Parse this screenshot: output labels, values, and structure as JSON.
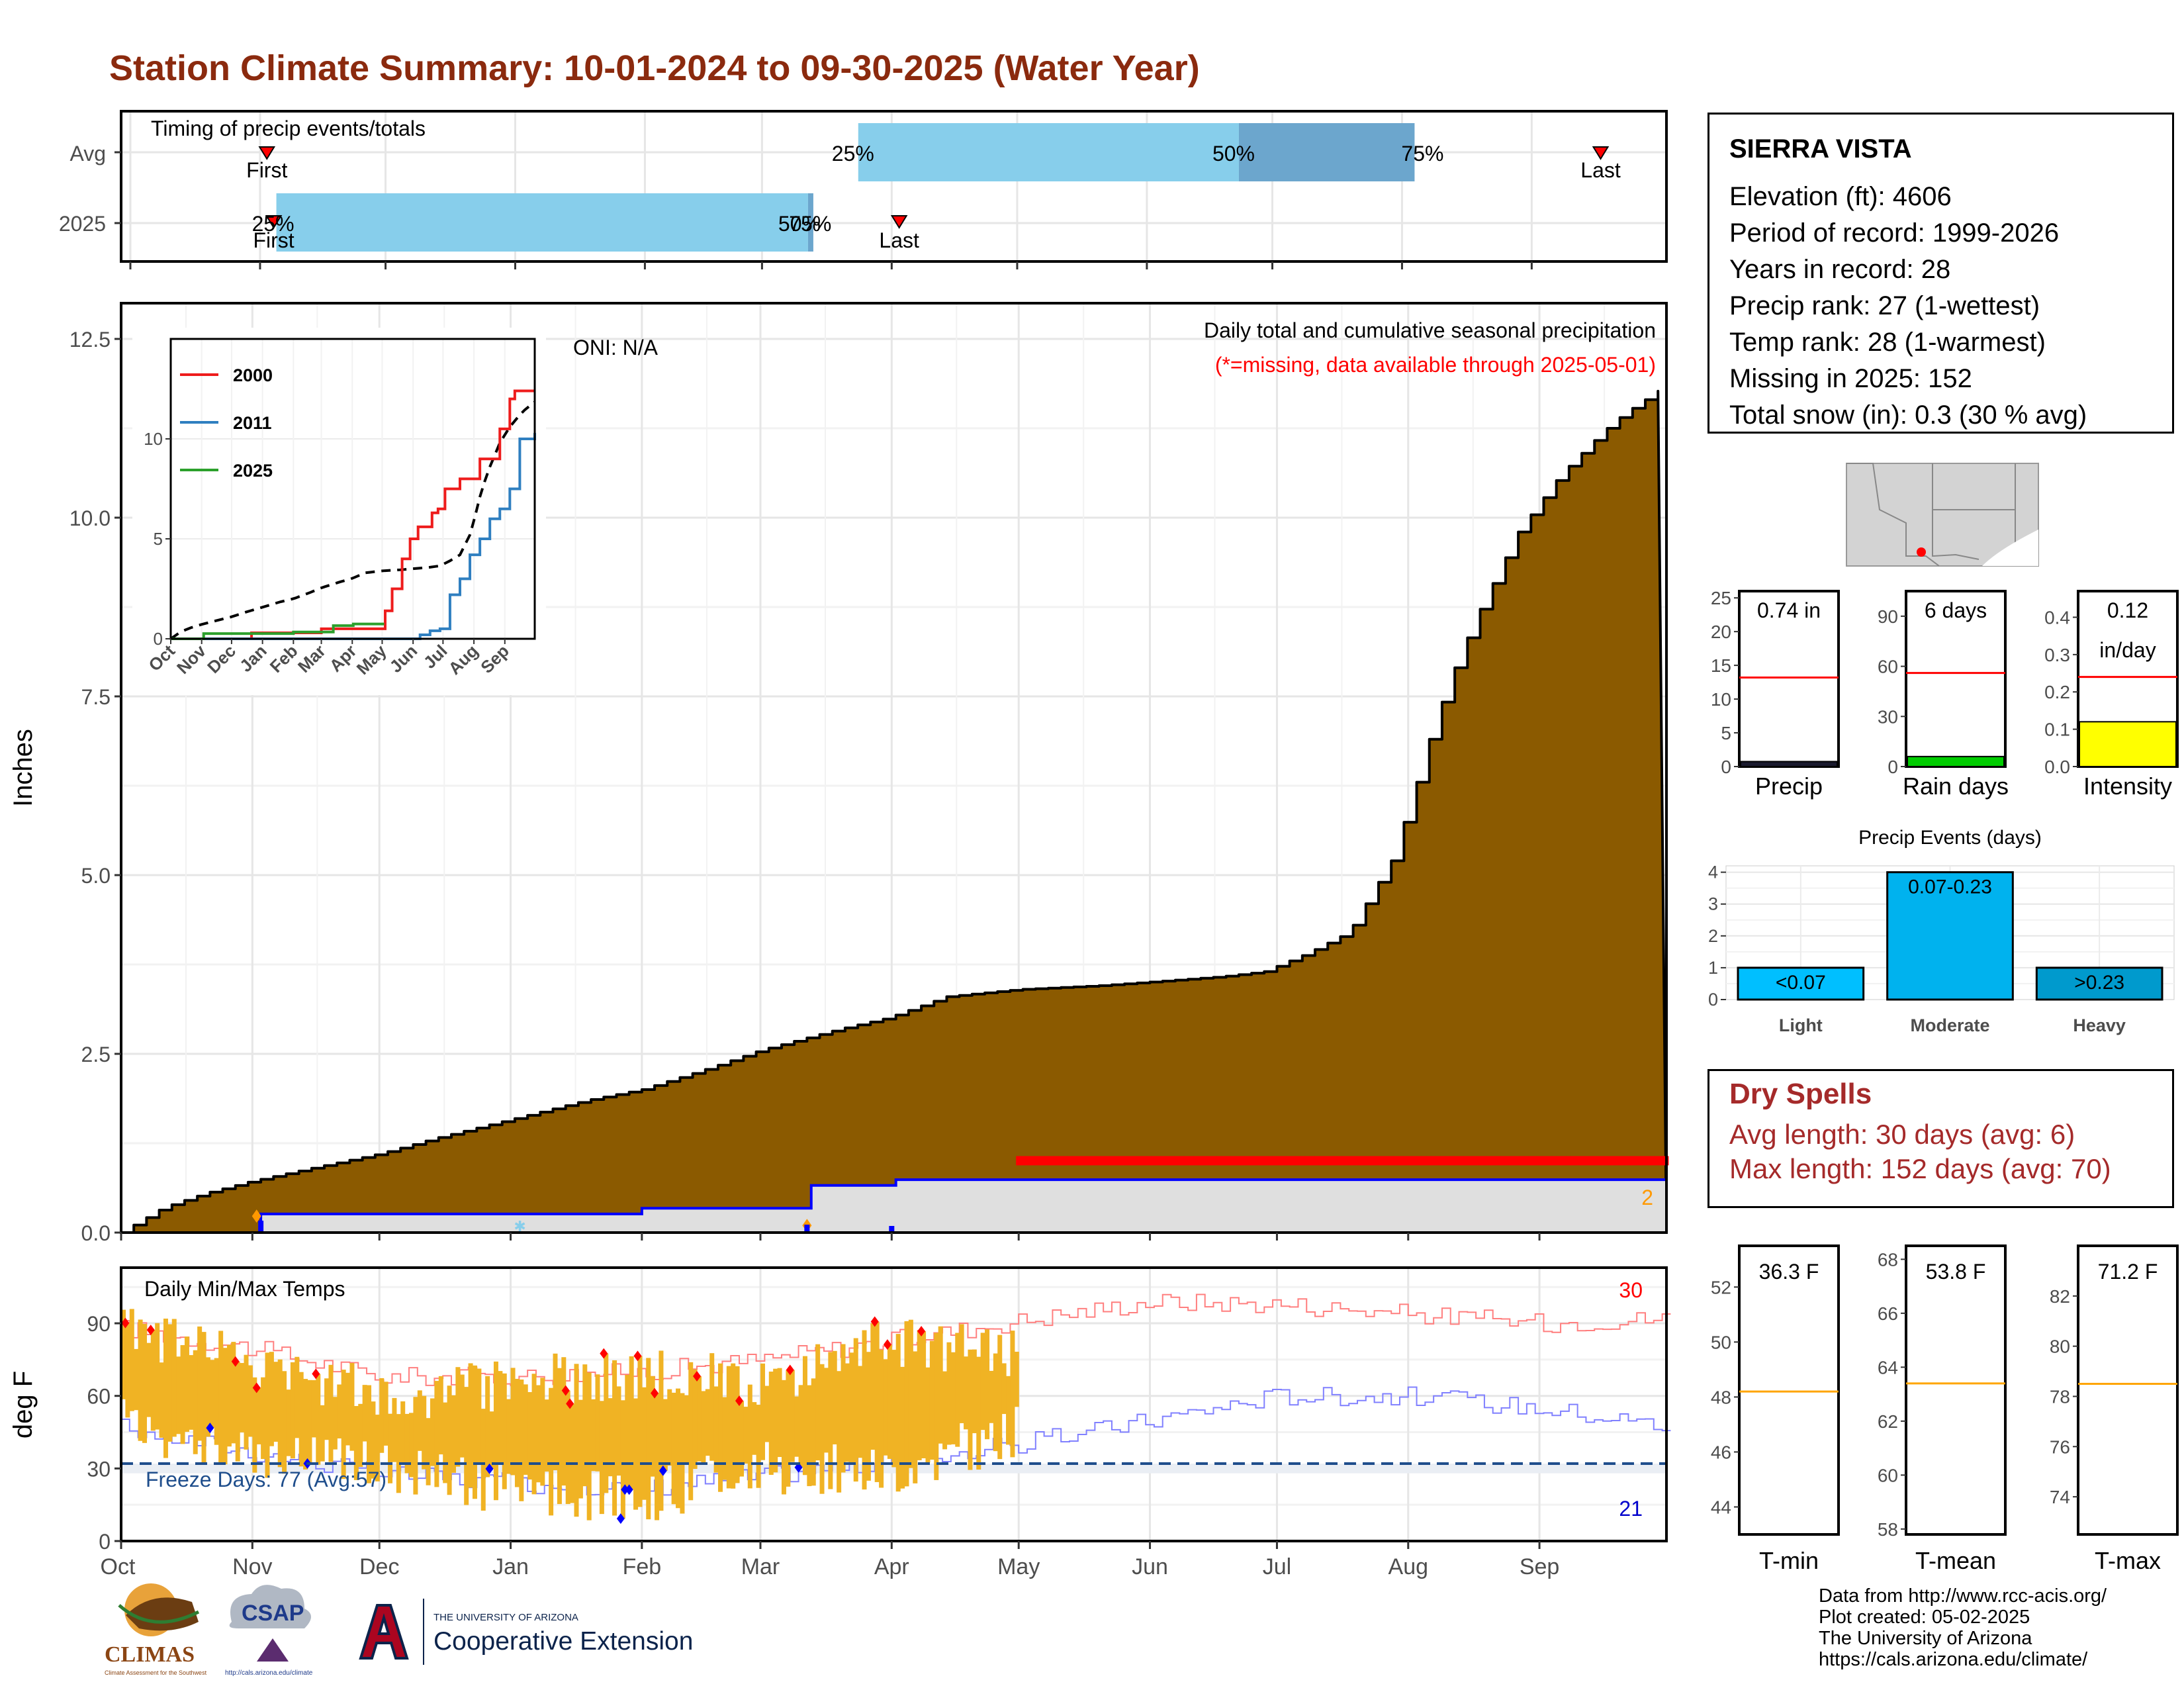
{
  "title": "Station Climate Summary: 10-01-2024 to 09-30-2025 (Water Year)",
  "colors": {
    "title": "#8b2a0e",
    "precip_fill": "#8b5a00",
    "avg_band": "#87ceeb",
    "avg_band_dark": "#6ca6cd",
    "missing": "#ff0000",
    "tmax_line": "#ff7f7f",
    "tmin_line": "#8080ff",
    "temp_bar": "#f0b324",
    "rain_days": "#00cc00",
    "intensity": "#ffff00",
    "events_light": "#00bfff",
    "events_moderate": "#00b2ee",
    "events_heavy": "#009acd",
    "dry_spell_text": "#a52a2a"
  },
  "months": [
    "Oct",
    "Nov",
    "Dec",
    "Jan",
    "Feb",
    "Mar",
    "Apr",
    "May",
    "Jun",
    "Jul",
    "Aug",
    "Sep"
  ],
  "timing": {
    "label": "Timing of precip events/totals",
    "rows": [
      "Avg",
      "2025"
    ],
    "first_label": "First",
    "last_label": "Last",
    "avg_pct_labels": [
      "25%",
      "50%",
      "75%"
    ],
    "y2025_pct_labels": [
      "25%",
      "50%",
      "75%"
    ],
    "avg": {
      "first_day": 32,
      "p25": 174,
      "p50": 265,
      "p75": 307,
      "last_day": 351
    },
    "y2025": {
      "first_day": 33,
      "p25": 33,
      "p50": 162,
      "p75": 163,
      "last_day": 183
    }
  },
  "precip_panel": {
    "title": "Daily total and cumulative seasonal precipitation",
    "subtitle": "(*=missing, data available through 2025-05-01)",
    "oni": "ONI: N/A",
    "ylabel": "Inches",
    "yticks": [
      "0.0",
      "2.5",
      "5.0",
      "7.5",
      "10.0",
      "12.5"
    ],
    "ylim": [
      0,
      13
    ],
    "count_label": "2"
  },
  "inset": {
    "yticks": [
      "0",
      "5",
      "10"
    ],
    "xticks": [
      "Oct",
      "Nov",
      "Dec",
      "Jan",
      "Feb",
      "Mar",
      "Apr",
      "May",
      "Jun",
      "Jul",
      "Aug",
      "Sep"
    ],
    "legend": [
      "2000",
      "2011",
      "2025"
    ]
  },
  "temp_panel": {
    "label": "Daily Min/Max Temps",
    "ylabel": "deg F",
    "yticks": [
      "0",
      "30",
      "60",
      "90"
    ],
    "ylim": [
      0,
      113
    ],
    "freeze_label": "Freeze Days: 77 (Avg:57)",
    "max_count": "30",
    "min_count": "21"
  },
  "station": {
    "name": "SIERRA VISTA",
    "lines": [
      "Elevation (ft): 4606",
      "Period of record: 1999-2026",
      "Years in record: 28",
      "Precip rank: 27 (1-wettest)",
      "Temp rank: 28 (1-warmest)",
      "Missing in 2025: 152",
      "Total snow (in): 0.3 (30 % avg)"
    ]
  },
  "gauges": [
    {
      "name": "Precip",
      "value_label": "0.74 in",
      "value": 0.74,
      "avg": 13.2,
      "ymax": 26,
      "yticks": [
        "0",
        "5",
        "10",
        "15",
        "20",
        "25"
      ],
      "tickvals": [
        0,
        5,
        10,
        15,
        20,
        25
      ],
      "color": "#1a1a2e"
    },
    {
      "name": "Rain days",
      "value_label": "6 days",
      "value": 6,
      "avg": 56,
      "ymax": 105,
      "yticks": [
        "0",
        "30",
        "60",
        "90"
      ],
      "tickvals": [
        0,
        30,
        60,
        90
      ],
      "color": "#00cc00"
    },
    {
      "name": "Intensity",
      "value_label": "0.12",
      "value_label2": "in/day",
      "value": 0.12,
      "avg": 0.24,
      "ymax": 0.47,
      "yticks": [
        "0.0",
        "0.1",
        "0.2",
        "0.3",
        "0.4"
      ],
      "tickvals": [
        0,
        0.1,
        0.2,
        0.3,
        0.4
      ],
      "color": "#ffff00"
    }
  ],
  "events": {
    "title": "Precip Events (days)",
    "categories": [
      "Light",
      "Moderate",
      "Heavy"
    ],
    "labels": [
      "<0.07",
      "0.07-0.23",
      ">0.23"
    ],
    "values": [
      1,
      4,
      1
    ],
    "yticks": [
      "0",
      "1",
      "2",
      "3",
      "4"
    ]
  },
  "dry_spells": {
    "title": "Dry Spells",
    "avg": "Avg length: 30 days (avg: 6)",
    "max": "Max length: 152 days (avg: 70)"
  },
  "temp_gauges": [
    {
      "name": "T-min",
      "value_label": "36.3 F",
      "ymin": 43,
      "ymax": 53.5,
      "avg": 48.2,
      "yticks": [
        "44",
        "46",
        "48",
        "50",
        "52"
      ],
      "tickvals": [
        44,
        46,
        48,
        50,
        52
      ]
    },
    {
      "name": "T-mean",
      "value_label": "53.8 F",
      "ymin": 57.8,
      "ymax": 68.5,
      "avg": 63.4,
      "yticks": [
        "58",
        "60",
        "62",
        "64",
        "66",
        "68"
      ],
      "tickvals": [
        58,
        60,
        62,
        64,
        66,
        68
      ]
    },
    {
      "name": "T-max",
      "value_label": "71.2 F",
      "ymin": 72.5,
      "ymax": 84,
      "avg": 78.5,
      "yticks": [
        "74",
        "76",
        "78",
        "80",
        "82"
      ],
      "tickvals": [
        74,
        76,
        78,
        80,
        82
      ]
    }
  ],
  "credits": [
    "Data from http://www.rcc-acis.org/",
    "Plot created: 05-02-2025",
    "The University of Arizona",
    "https://cals.arizona.edu/climate/"
  ],
  "logos": {
    "climas": "CLIMAS",
    "climas_sub": "Climate Assessment for the Southwest",
    "csap": "CSAP",
    "csap_url": "http://cals.arizona.edu/climate",
    "ua_small": "THE UNIVERSITY OF ARIZONA",
    "ua_big": "Cooperative Extension"
  },
  "chart_data": [
    {
      "type": "area",
      "title": "Daily total and cumulative seasonal precipitation",
      "ylabel": "Inches",
      "ylim": [
        0,
        13
      ],
      "x_unit": "day of water year (Oct 1 = 0)",
      "series": [
        {
          "name": "cumulative average",
          "x": [
            0,
            10,
            20,
            31,
            45,
            61,
            75,
            92,
            110,
            123,
            140,
            151,
            170,
            181,
            195,
            212,
            230,
            242,
            260,
            270,
            280,
            290,
            300,
            305,
            310,
            315,
            320,
            325,
            330,
            335,
            340,
            345,
            350,
            355,
            360,
            365
          ],
          "values": [
            0,
            0.35,
            0.55,
            0.72,
            0.9,
            1.1,
            1.33,
            1.58,
            1.85,
            2.0,
            2.32,
            2.55,
            2.85,
            3.0,
            3.3,
            3.4,
            3.45,
            3.5,
            3.58,
            3.65,
            3.9,
            4.2,
            5.2,
            6.1,
            7.1,
            7.9,
            8.6,
            9.2,
            9.8,
            10.2,
            10.6,
            10.9,
            11.2,
            11.45,
            11.65,
            11.85
          ]
        },
        {
          "name": "2025",
          "x": [
            0,
            31,
            33,
            122,
            123,
            162,
            163,
            183,
            365
          ],
          "values": [
            0,
            0,
            0.26,
            0.26,
            0.34,
            0.34,
            0.66,
            0.74,
            0.74
          ]
        }
      ]
    },
    {
      "type": "line",
      "title": "Daily Min/Max Temps",
      "ylabel": "deg F",
      "ylim": [
        0,
        113
      ],
      "freeze_line": 32,
      "series": [
        {
          "name": "avg max",
          "x": [
            0,
            30,
            61,
            92,
            123,
            151,
            182,
            212,
            243,
            273,
            304,
            335,
            364
          ],
          "values": [
            88,
            80,
            68,
            68,
            70,
            75,
            83,
            91,
            99,
            98,
            94,
            90,
            92
          ]
        },
        {
          "name": "avg min",
          "x": [
            0,
            30,
            61,
            92,
            123,
            151,
            182,
            212,
            243,
            273,
            304,
            335,
            364
          ],
          "values": [
            47,
            37,
            28,
            24,
            22,
            27,
            33,
            40,
            50,
            60,
            60,
            55,
            48
          ]
        },
        {
          "name": "2025 max",
          "x": [
            0,
            30,
            61,
            92,
            123,
            151,
            182,
            212
          ],
          "values": [
            88,
            75,
            60,
            65,
            70,
            65,
            82,
            78
          ]
        },
        {
          "name": "2025 min",
          "x": [
            0,
            30,
            61,
            92,
            123,
            151,
            182,
            212
          ],
          "values": [
            48,
            35,
            32,
            20,
            18,
            30,
            30,
            45
          ]
        }
      ]
    },
    {
      "type": "bar",
      "title": "Precip Events (days)",
      "categories": [
        "Light",
        "Moderate",
        "Heavy"
      ],
      "values": [
        1,
        4,
        1
      ],
      "ylim": [
        0,
        4.2
      ]
    }
  ]
}
